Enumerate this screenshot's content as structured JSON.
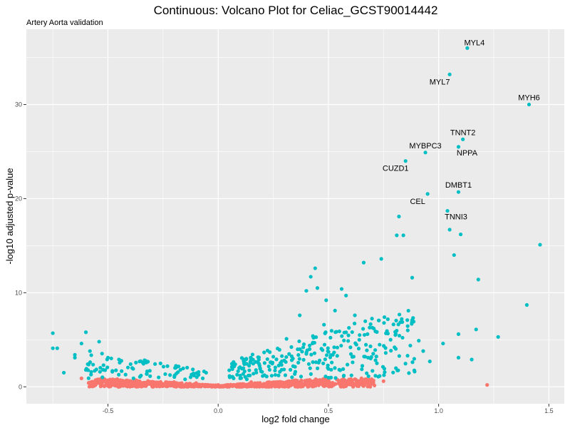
{
  "chart_data": {
    "type": "scatter",
    "title": "Continuous: Volcano Plot for Celiac_GCST90014442",
    "subtitle": "Artery Aorta validation",
    "xlabel": "log2 fold change",
    "ylabel": "-log10 adjusted p-value",
    "xlim": [
      -0.87,
      1.57
    ],
    "ylim": [
      -1.8,
      38.0
    ],
    "x_ticks": [
      -0.5,
      0.0,
      0.5,
      1.0,
      1.5
    ],
    "x_tick_labels": [
      "-0.5",
      "0.0",
      "0.5",
      "1.0",
      "1.5"
    ],
    "y_ticks": [
      0,
      10,
      20,
      30
    ],
    "y_tick_labels": [
      "0",
      "10",
      "20",
      "30"
    ],
    "grid": true,
    "legend": "none",
    "colors": {
      "significant": "#00BFC4",
      "not_significant": "#F8766D",
      "panel": "#EBEBEB",
      "grid": "#FFFFFF"
    },
    "labeled_points": [
      {
        "label": "MYL4",
        "x": 1.13,
        "y": 36.0,
        "label_pos": "above-right"
      },
      {
        "label": "MYL7",
        "x": 1.05,
        "y": 33.2,
        "label_pos": "below-left"
      },
      {
        "label": "MYH6",
        "x": 1.41,
        "y": 30.0,
        "label_pos": "above"
      },
      {
        "label": "TNNT2",
        "x": 1.11,
        "y": 26.3,
        "label_pos": "above"
      },
      {
        "label": "NPPA",
        "x": 1.09,
        "y": 25.5,
        "label_pos": "below"
      },
      {
        "label": "MYBPC3",
        "x": 0.94,
        "y": 24.9,
        "label_pos": "above"
      },
      {
        "label": "CUZD1",
        "x": 0.85,
        "y": 24.0,
        "label_pos": "below-left"
      },
      {
        "label": "DMBT1",
        "x": 1.09,
        "y": 20.7,
        "label_pos": "above"
      },
      {
        "label": "CEL",
        "x": 0.95,
        "y": 20.5,
        "label_pos": "below-left"
      },
      {
        "label": "TNNI3",
        "x": 1.04,
        "y": 18.7,
        "label_pos": "below"
      }
    ],
    "other_significant_points": [
      [
        0.82,
        18.1
      ],
      [
        0.81,
        16.1
      ],
      [
        0.84,
        16.1
      ],
      [
        1.05,
        16.7
      ],
      [
        1.1,
        16.2
      ],
      [
        1.46,
        15.1
      ],
      [
        1.07,
        14.0
      ],
      [
        0.74,
        13.6
      ],
      [
        0.66,
        13.2
      ],
      [
        1.18,
        11.4
      ],
      [
        0.88,
        11.6
      ],
      [
        0.4,
        10.2
      ],
      [
        0.45,
        10.5
      ],
      [
        0.56,
        10.4
      ],
      [
        0.58,
        9.7
      ],
      [
        1.4,
        8.7
      ],
      [
        1.27,
        5.3
      ],
      [
        1.17,
        6.1
      ],
      [
        1.15,
        2.9
      ],
      [
        1.09,
        3.1
      ],
      [
        1.09,
        5.6
      ],
      [
        1.02,
        4.6
      ],
      [
        0.93,
        3.8
      ],
      [
        0.91,
        4.9
      ],
      [
        0.96,
        2.7
      ],
      [
        0.88,
        7.1
      ],
      [
        0.86,
        6.0
      ],
      [
        0.8,
        4.2
      ],
      [
        0.76,
        3.6
      ],
      [
        0.72,
        2.5
      ],
      [
        0.68,
        3.1
      ],
      [
        0.64,
        5.0
      ],
      [
        0.6,
        4.2
      ],
      [
        0.55,
        5.9
      ],
      [
        0.52,
        3.4
      ],
      [
        0.48,
        6.6
      ],
      [
        0.46,
        2.8
      ],
      [
        0.43,
        4.7
      ],
      [
        0.4,
        3.5
      ],
      [
        0.37,
        7.6
      ],
      [
        0.34,
        2.2
      ],
      [
        0.31,
        5.1
      ],
      [
        0.28,
        1.6
      ],
      [
        0.25,
        3.2
      ],
      [
        0.22,
        1.1
      ],
      [
        0.19,
        2.0
      ],
      [
        0.16,
        1.4
      ],
      [
        0.13,
        0.8
      ],
      [
        0.1,
        1.2
      ],
      [
        0.07,
        0.9
      ],
      [
        0.49,
        9.2
      ],
      [
        0.53,
        8.1
      ],
      [
        0.62,
        7.6
      ],
      [
        0.42,
        11.7
      ],
      [
        0.44,
        12.6
      ],
      [
        0.5,
        1.9
      ],
      [
        0.57,
        1.2
      ],
      [
        0.61,
        2.6
      ],
      [
        0.35,
        1.6
      ],
      [
        0.3,
        2.8
      ],
      [
        -0.07,
        0.9
      ],
      [
        -0.11,
        1.2
      ],
      [
        -0.15,
        0.8
      ],
      [
        -0.19,
        1.4
      ],
      [
        -0.23,
        2.2
      ],
      [
        -0.27,
        1.0
      ],
      [
        -0.31,
        1.7
      ],
      [
        -0.35,
        1.2
      ],
      [
        -0.39,
        2.0
      ],
      [
        -0.42,
        1.3
      ],
      [
        -0.45,
        2.9
      ],
      [
        -0.48,
        1.6
      ],
      [
        -0.5,
        3.1
      ],
      [
        -0.52,
        2.3
      ],
      [
        -0.54,
        4.8
      ],
      [
        -0.56,
        1.7
      ],
      [
        -0.6,
        5.8
      ],
      [
        -0.62,
        4.6
      ],
      [
        -0.65,
        3.4
      ],
      [
        -0.65,
        3.1
      ],
      [
        -0.7,
        1.5
      ],
      [
        -0.73,
        4.1
      ],
      [
        -0.75,
        5.7
      ],
      [
        -0.75,
        4.1
      ],
      [
        -0.6,
        1.8
      ]
    ],
    "not_significant_points": [
      [
        1.22,
        0.2
      ],
      [
        0.75,
        0.6
      ],
      [
        0.7,
        0.4
      ],
      [
        0.65,
        0.9
      ],
      [
        0.6,
        0.3
      ],
      [
        0.55,
        0.6
      ],
      [
        0.5,
        0.2
      ],
      [
        0.45,
        0.5
      ],
      [
        0.4,
        0.3
      ],
      [
        0.35,
        0.7
      ],
      [
        0.3,
        0.1
      ],
      [
        0.25,
        0.4
      ],
      [
        0.2,
        0.2
      ],
      [
        0.15,
        0.5
      ],
      [
        0.1,
        0.3
      ],
      [
        0.05,
        0.1
      ],
      [
        0.0,
        0.2
      ],
      [
        -0.05,
        0.1
      ],
      [
        -0.1,
        0.4
      ],
      [
        -0.15,
        0.2
      ],
      [
        -0.2,
        0.5
      ],
      [
        -0.25,
        0.3
      ],
      [
        -0.3,
        0.1
      ],
      [
        -0.35,
        0.4
      ],
      [
        -0.4,
        0.2
      ],
      [
        -0.45,
        0.5
      ],
      [
        -0.5,
        0.3
      ],
      [
        -0.55,
        0.6
      ],
      [
        -0.62,
        0.9
      ],
      [
        -0.55,
        0.4
      ]
    ]
  }
}
